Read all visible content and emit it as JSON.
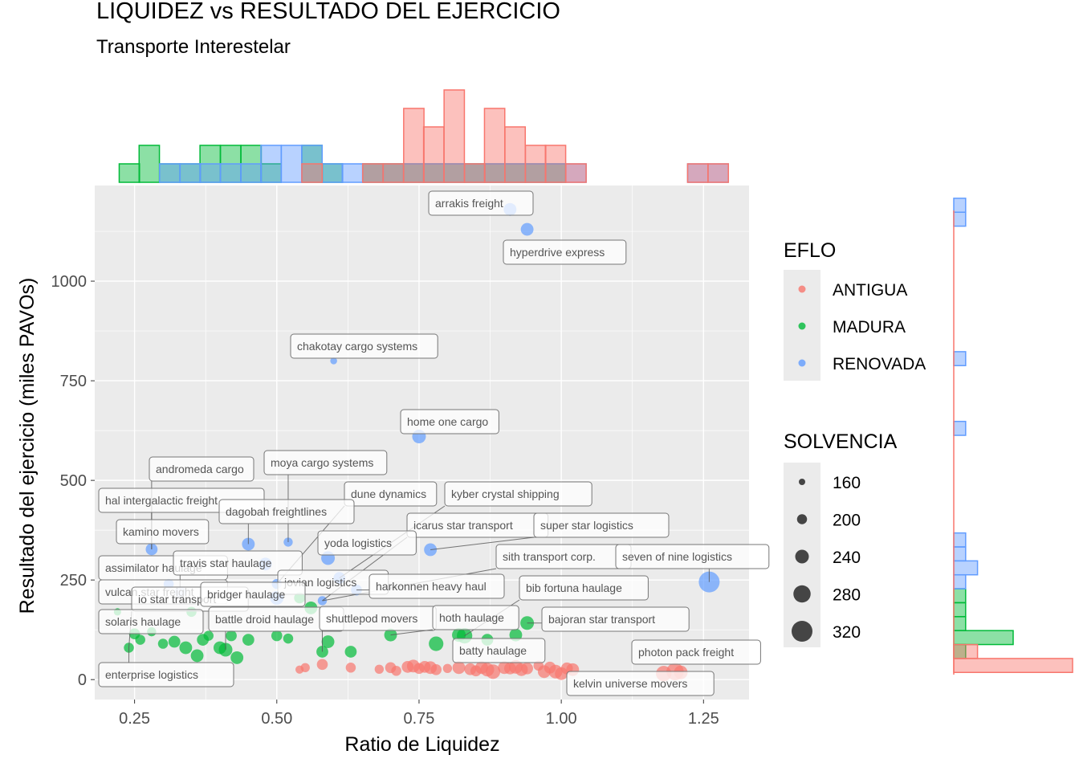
{
  "chart_data": {
    "type": "scatter",
    "title": "LIQUIDEZ vs RESULTADO DEL EJERCICIO",
    "subtitle": "Transporte Interestelar",
    "xlabel": "Ratio de Liquidez",
    "ylabel": "Resultado del ejercicio (miles PAVOs)",
    "xlim": [
      0.18,
      1.33
    ],
    "ylim": [
      -50,
      1240
    ],
    "x_ticks": [
      0.25,
      0.5,
      0.75,
      1.0,
      1.25
    ],
    "x_tick_labels": [
      "0.25",
      "0.50",
      "0.75",
      "1.00",
      "1.25"
    ],
    "y_ticks": [
      0,
      250,
      500,
      750,
      1000
    ],
    "y_tick_labels": [
      "0",
      "250",
      "500",
      "750",
      "1000"
    ],
    "grid": true,
    "colors": {
      "ANTIGUA": "#F8766D",
      "MADURA": "#00BA38",
      "RENOVADA": "#619CFF",
      "panel": "#EBEBEB"
    },
    "legend": {
      "placement": "right",
      "color_title": "EFLO",
      "color_entries": [
        "ANTIGUA",
        "MADURA",
        "RENOVADA"
      ],
      "size_title": "SOLVENCIA",
      "size_entries": [
        160,
        200,
        240,
        280,
        320
      ]
    },
    "series": [
      {
        "name": "ANTIGUA",
        "points": [
          [
            0.54,
            25,
            180
          ],
          [
            0.55,
            30,
            190
          ],
          [
            0.58,
            38,
            210
          ],
          [
            0.63,
            30,
            200
          ],
          [
            0.68,
            26,
            190
          ],
          [
            0.7,
            30,
            210
          ],
          [
            0.71,
            22,
            200
          ],
          [
            0.73,
            32,
            220
          ],
          [
            0.74,
            34,
            230
          ],
          [
            0.75,
            28,
            210
          ],
          [
            0.76,
            32,
            220
          ],
          [
            0.77,
            30,
            230
          ],
          [
            0.78,
            25,
            210
          ],
          [
            0.8,
            28,
            190
          ],
          [
            0.82,
            30,
            230
          ],
          [
            0.84,
            26,
            220
          ],
          [
            0.85,
            22,
            210
          ],
          [
            0.86,
            30,
            230
          ],
          [
            0.87,
            25,
            240
          ],
          [
            0.88,
            20,
            250
          ],
          [
            0.9,
            30,
            230
          ],
          [
            0.91,
            28,
            220
          ],
          [
            0.92,
            32,
            240
          ],
          [
            0.93,
            25,
            230
          ],
          [
            0.94,
            28,
            220
          ],
          [
            0.96,
            35,
            200
          ],
          [
            0.97,
            20,
            230
          ],
          [
            0.98,
            30,
            220
          ],
          [
            0.99,
            20,
            240
          ],
          [
            1.0,
            15,
            230
          ],
          [
            1.01,
            28,
            220
          ],
          [
            1.02,
            25,
            230
          ],
          [
            1.18,
            15,
            260
          ],
          [
            1.2,
            20,
            280
          ],
          [
            1.21,
            18,
            240
          ]
        ]
      },
      {
        "name": "MADURA",
        "points": [
          [
            0.22,
            170,
            170
          ],
          [
            0.24,
            80,
            200
          ],
          [
            0.25,
            115,
            210
          ],
          [
            0.26,
            100,
            200
          ],
          [
            0.28,
            120,
            190
          ],
          [
            0.3,
            90,
            200
          ],
          [
            0.32,
            95,
            220
          ],
          [
            0.34,
            80,
            230
          ],
          [
            0.35,
            170,
            200
          ],
          [
            0.36,
            60,
            230
          ],
          [
            0.37,
            100,
            220
          ],
          [
            0.38,
            110,
            200
          ],
          [
            0.4,
            80,
            230
          ],
          [
            0.41,
            75,
            240
          ],
          [
            0.42,
            110,
            210
          ],
          [
            0.43,
            55,
            230
          ],
          [
            0.45,
            100,
            220
          ],
          [
            0.5,
            110,
            210
          ],
          [
            0.52,
            103,
            200
          ],
          [
            0.54,
            205,
            210
          ],
          [
            0.56,
            180,
            230
          ],
          [
            0.58,
            70,
            220
          ],
          [
            0.59,
            95,
            230
          ],
          [
            0.63,
            70,
            220
          ],
          [
            0.7,
            112,
            230
          ],
          [
            0.78,
            90,
            250
          ],
          [
            0.82,
            112,
            240
          ],
          [
            0.83,
            110,
            260
          ],
          [
            0.87,
            100,
            220
          ],
          [
            0.92,
            112,
            230
          ],
          [
            0.94,
            142,
            240
          ]
        ]
      },
      {
        "name": "RENOVADA",
        "points": [
          [
            0.28,
            327,
            220
          ],
          [
            0.31,
            240,
            200
          ],
          [
            0.33,
            220,
            210
          ],
          [
            0.45,
            340,
            230
          ],
          [
            0.48,
            290,
            230
          ],
          [
            0.5,
            240,
            200
          ],
          [
            0.52,
            345,
            190
          ],
          [
            0.58,
            198,
            190
          ],
          [
            0.59,
            305,
            240
          ],
          [
            0.61,
            255,
            220
          ],
          [
            0.64,
            225,
            210
          ],
          [
            0.75,
            610,
            240
          ],
          [
            0.77,
            326,
            230
          ],
          [
            0.91,
            1180,
            230
          ],
          [
            0.94,
            1130,
            230
          ],
          [
            1.26,
            245,
            320
          ],
          [
            0.6,
            800,
            165
          ],
          [
            0.5,
            205,
            240
          ]
        ]
      }
    ],
    "annotations": [
      {
        "text": "arrakis freight",
        "x": 0.91,
        "y": 1180
      },
      {
        "text": "hyperdrive express",
        "x": 0.94,
        "y": 1130
      },
      {
        "text": "chakotay cargo systems",
        "x": 0.6,
        "y": 800
      },
      {
        "text": "home one cargo",
        "x": 0.75,
        "y": 610
      },
      {
        "text": "andromeda cargo",
        "x": 0.28,
        "y": 327
      },
      {
        "text": "moya cargo systems",
        "x": 0.52,
        "y": 345
      },
      {
        "text": "hal intergalactic freight",
        "x": 0.28,
        "y": 327
      },
      {
        "text": "dune dynamics",
        "x": 0.5,
        "y": 240
      },
      {
        "text": "kyber crystal shipping",
        "x": 0.61,
        "y": 255
      },
      {
        "text": "dagobah freightlines",
        "x": 0.45,
        "y": 340
      },
      {
        "text": "icarus star transport",
        "x": 0.58,
        "y": 198
      },
      {
        "text": "super star logistics",
        "x": 0.77,
        "y": 326
      },
      {
        "text": "kamino movers",
        "x": 0.28,
        "y": 327
      },
      {
        "text": "yoda logistics",
        "x": 0.59,
        "y": 305
      },
      {
        "text": "sith transport corp.",
        "x": 0.58,
        "y": 198
      },
      {
        "text": "seven of nine logistics",
        "x": 1.26,
        "y": 245
      },
      {
        "text": "assimilator haulage",
        "x": 0.31,
        "y": 240
      },
      {
        "text": "travis star haulage",
        "x": 0.33,
        "y": 220
      },
      {
        "text": "jovian logistics",
        "x": 0.61,
        "y": 255
      },
      {
        "text": "harkonnen heavy haul",
        "x": 0.64,
        "y": 225
      },
      {
        "text": "bib fortuna haulage",
        "x": 0.83,
        "y": 110
      },
      {
        "text": "vulcan star freight",
        "x": 0.22,
        "y": 170
      },
      {
        "text": "io star transport",
        "x": 0.24,
        "y": 80
      },
      {
        "text": "bridger haulage",
        "x": 0.35,
        "y": 170
      },
      {
        "text": "solaris haulage",
        "x": 0.25,
        "y": 115
      },
      {
        "text": "battle droid haulage",
        "x": 0.41,
        "y": 75
      },
      {
        "text": "shuttlepod movers",
        "x": 0.58,
        "y": 70
      },
      {
        "text": "hoth haulage",
        "x": 0.7,
        "y": 112
      },
      {
        "text": "bajoran star transport",
        "x": 0.94,
        "y": 142
      },
      {
        "text": "batty haulage",
        "x": 0.87,
        "y": 100
      },
      {
        "text": "photon pack freight",
        "x": 1.2,
        "y": 20
      },
      {
        "text": "enterprise logistics",
        "x": 0.24,
        "y": 80
      },
      {
        "text": "kelvin universe movers",
        "x": 0.99,
        "y": 20
      }
    ],
    "top_histogram": {
      "bin_width": 0.0357,
      "ANTIGUA": [
        [
          0.544,
          1
        ],
        [
          0.651,
          1
        ],
        [
          0.687,
          1
        ],
        [
          0.723,
          4
        ],
        [
          0.758,
          3
        ],
        [
          0.794,
          5
        ],
        [
          0.83,
          1
        ],
        [
          0.865,
          4
        ],
        [
          0.901,
          3
        ],
        [
          0.937,
          2
        ],
        [
          0.972,
          2
        ],
        [
          1.008,
          1
        ],
        [
          1.222,
          1
        ],
        [
          1.258,
          1
        ]
      ],
      "MADURA": [
        [
          0.223,
          1
        ],
        [
          0.258,
          2
        ],
        [
          0.294,
          1
        ],
        [
          0.33,
          1
        ],
        [
          0.365,
          2
        ],
        [
          0.401,
          2
        ],
        [
          0.437,
          2
        ],
        [
          0.472,
          1
        ],
        [
          0.544,
          2
        ],
        [
          0.58,
          1
        ],
        [
          0.651,
          1
        ],
        [
          0.687,
          1
        ],
        [
          0.723,
          1
        ],
        [
          0.758,
          1
        ],
        [
          0.794,
          1
        ],
        [
          0.83,
          1
        ],
        [
          0.865,
          1
        ],
        [
          0.901,
          1
        ],
        [
          0.937,
          1
        ],
        [
          0.972,
          1
        ]
      ],
      "RENOVADA": [
        [
          0.294,
          1
        ],
        [
          0.33,
          1
        ],
        [
          0.365,
          1
        ],
        [
          0.401,
          1
        ],
        [
          0.437,
          1
        ],
        [
          0.472,
          2
        ],
        [
          0.508,
          2
        ],
        [
          0.544,
          2
        ],
        [
          0.58,
          1
        ],
        [
          0.615,
          1
        ],
        [
          0.651,
          1
        ],
        [
          0.687,
          1
        ],
        [
          0.723,
          1
        ],
        [
          0.758,
          1
        ],
        [
          0.794,
          1
        ],
        [
          0.83,
          1
        ],
        [
          0.865,
          1
        ],
        [
          0.901,
          1
        ],
        [
          0.937,
          1
        ],
        [
          0.972,
          1
        ],
        [
          1.008,
          1
        ],
        [
          1.222,
          1
        ],
        [
          1.258,
          1
        ]
      ]
    },
    "right_histogram": {
      "bin_width": 35,
      "ANTIGUA": [
        [
          18,
          10
        ],
        [
          53,
          2
        ]
      ],
      "MADURA": [
        [
          53,
          1
        ],
        [
          88,
          5
        ],
        [
          123,
          1
        ],
        [
          158,
          1
        ],
        [
          193,
          1
        ]
      ],
      "RENOVADA": [
        [
          228,
          1
        ],
        [
          263,
          2
        ],
        [
          298,
          1
        ],
        [
          333,
          1
        ],
        [
          613,
          1
        ],
        [
          788,
          1
        ],
        [
          1138,
          1
        ],
        [
          1173,
          1
        ]
      ]
    }
  }
}
